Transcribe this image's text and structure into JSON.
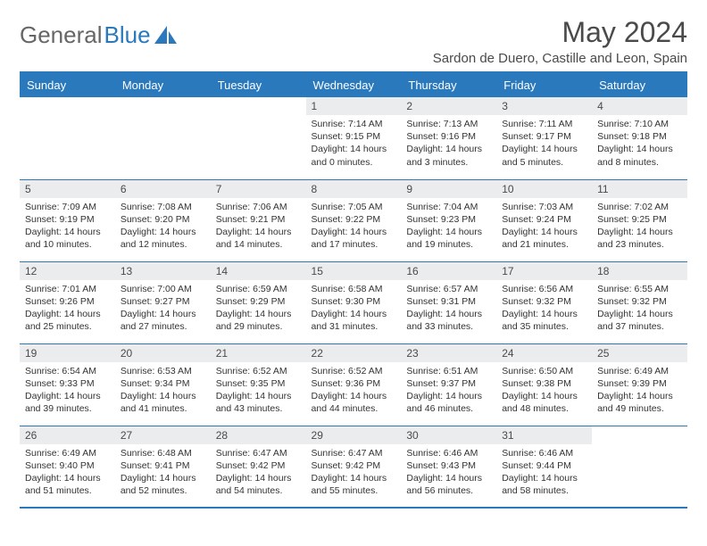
{
  "brand": {
    "part1": "General",
    "part2": "Blue"
  },
  "title": "May 2024",
  "location": "Sardon de Duero, Castille and Leon, Spain",
  "colors": {
    "header_bg": "#2a79bd",
    "header_text": "#ffffff",
    "daynum_bg": "#ebeced",
    "border": "#2a79bd",
    "text": "#333333"
  },
  "dayNames": [
    "Sunday",
    "Monday",
    "Tuesday",
    "Wednesday",
    "Thursday",
    "Friday",
    "Saturday"
  ],
  "weeks": [
    [
      null,
      null,
      null,
      {
        "n": "1",
        "sr": "7:14 AM",
        "ss": "9:15 PM",
        "dl": "14 hours and 0 minutes."
      },
      {
        "n": "2",
        "sr": "7:13 AM",
        "ss": "9:16 PM",
        "dl": "14 hours and 3 minutes."
      },
      {
        "n": "3",
        "sr": "7:11 AM",
        "ss": "9:17 PM",
        "dl": "14 hours and 5 minutes."
      },
      {
        "n": "4",
        "sr": "7:10 AM",
        "ss": "9:18 PM",
        "dl": "14 hours and 8 minutes."
      }
    ],
    [
      {
        "n": "5",
        "sr": "7:09 AM",
        "ss": "9:19 PM",
        "dl": "14 hours and 10 minutes."
      },
      {
        "n": "6",
        "sr": "7:08 AM",
        "ss": "9:20 PM",
        "dl": "14 hours and 12 minutes."
      },
      {
        "n": "7",
        "sr": "7:06 AM",
        "ss": "9:21 PM",
        "dl": "14 hours and 14 minutes."
      },
      {
        "n": "8",
        "sr": "7:05 AM",
        "ss": "9:22 PM",
        "dl": "14 hours and 17 minutes."
      },
      {
        "n": "9",
        "sr": "7:04 AM",
        "ss": "9:23 PM",
        "dl": "14 hours and 19 minutes."
      },
      {
        "n": "10",
        "sr": "7:03 AM",
        "ss": "9:24 PM",
        "dl": "14 hours and 21 minutes."
      },
      {
        "n": "11",
        "sr": "7:02 AM",
        "ss": "9:25 PM",
        "dl": "14 hours and 23 minutes."
      }
    ],
    [
      {
        "n": "12",
        "sr": "7:01 AM",
        "ss": "9:26 PM",
        "dl": "14 hours and 25 minutes."
      },
      {
        "n": "13",
        "sr": "7:00 AM",
        "ss": "9:27 PM",
        "dl": "14 hours and 27 minutes."
      },
      {
        "n": "14",
        "sr": "6:59 AM",
        "ss": "9:29 PM",
        "dl": "14 hours and 29 minutes."
      },
      {
        "n": "15",
        "sr": "6:58 AM",
        "ss": "9:30 PM",
        "dl": "14 hours and 31 minutes."
      },
      {
        "n": "16",
        "sr": "6:57 AM",
        "ss": "9:31 PM",
        "dl": "14 hours and 33 minutes."
      },
      {
        "n": "17",
        "sr": "6:56 AM",
        "ss": "9:32 PM",
        "dl": "14 hours and 35 minutes."
      },
      {
        "n": "18",
        "sr": "6:55 AM",
        "ss": "9:32 PM",
        "dl": "14 hours and 37 minutes."
      }
    ],
    [
      {
        "n": "19",
        "sr": "6:54 AM",
        "ss": "9:33 PM",
        "dl": "14 hours and 39 minutes."
      },
      {
        "n": "20",
        "sr": "6:53 AM",
        "ss": "9:34 PM",
        "dl": "14 hours and 41 minutes."
      },
      {
        "n": "21",
        "sr": "6:52 AM",
        "ss": "9:35 PM",
        "dl": "14 hours and 43 minutes."
      },
      {
        "n": "22",
        "sr": "6:52 AM",
        "ss": "9:36 PM",
        "dl": "14 hours and 44 minutes."
      },
      {
        "n": "23",
        "sr": "6:51 AM",
        "ss": "9:37 PM",
        "dl": "14 hours and 46 minutes."
      },
      {
        "n": "24",
        "sr": "6:50 AM",
        "ss": "9:38 PM",
        "dl": "14 hours and 48 minutes."
      },
      {
        "n": "25",
        "sr": "6:49 AM",
        "ss": "9:39 PM",
        "dl": "14 hours and 49 minutes."
      }
    ],
    [
      {
        "n": "26",
        "sr": "6:49 AM",
        "ss": "9:40 PM",
        "dl": "14 hours and 51 minutes."
      },
      {
        "n": "27",
        "sr": "6:48 AM",
        "ss": "9:41 PM",
        "dl": "14 hours and 52 minutes."
      },
      {
        "n": "28",
        "sr": "6:47 AM",
        "ss": "9:42 PM",
        "dl": "14 hours and 54 minutes."
      },
      {
        "n": "29",
        "sr": "6:47 AM",
        "ss": "9:42 PM",
        "dl": "14 hours and 55 minutes."
      },
      {
        "n": "30",
        "sr": "6:46 AM",
        "ss": "9:43 PM",
        "dl": "14 hours and 56 minutes."
      },
      {
        "n": "31",
        "sr": "6:46 AM",
        "ss": "9:44 PM",
        "dl": "14 hours and 58 minutes."
      },
      null
    ]
  ],
  "labels": {
    "sunrise": "Sunrise:",
    "sunset": "Sunset:",
    "daylight": "Daylight:"
  }
}
